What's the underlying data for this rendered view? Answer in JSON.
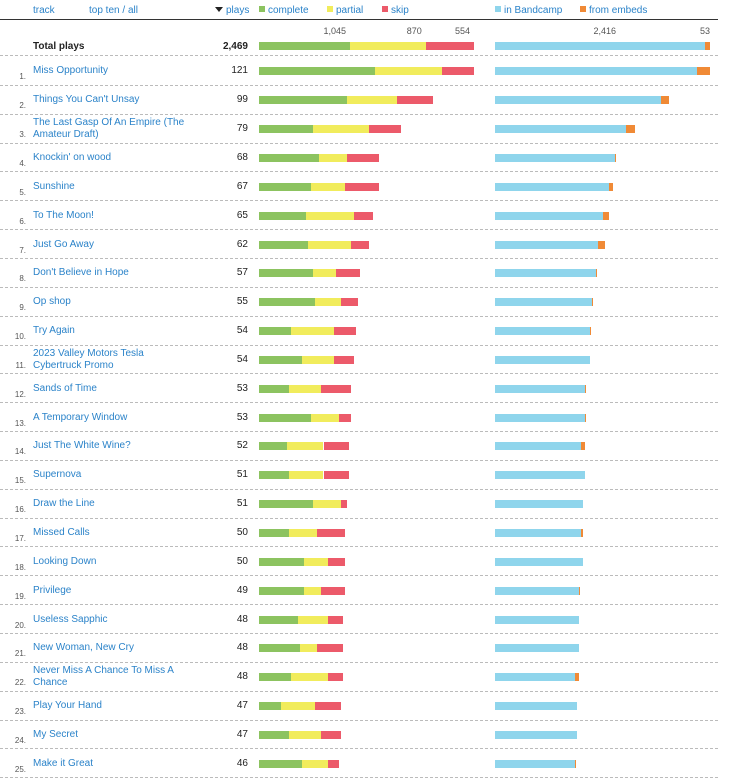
{
  "header": {
    "track_label": "track",
    "filter_top_ten": "top ten",
    "filter_sep": " / ",
    "filter_all": "all",
    "plays_label": "plays",
    "legend_complete": "complete",
    "legend_partial": "partial",
    "legend_skip": "skip",
    "legend_bandcamp": "in Bandcamp",
    "legend_embeds": "from embeds"
  },
  "colors": {
    "complete": "#8cc360",
    "partial": "#f1ec5c",
    "skip": "#ec5a6a",
    "bandcamp": "#8fd5ec",
    "embeds": "#f08a36",
    "link": "#2b83c9"
  },
  "totals": {
    "label": "Total plays",
    "plays": "2,469",
    "complete": 1045,
    "partial": 870,
    "skip": 554,
    "complete_text": "1,045",
    "partial_text": "870",
    "skip_text": "554",
    "bandcamp": 2416,
    "embeds": 53,
    "bandcamp_text": "2,416",
    "embeds_text": "53"
  },
  "tracks": [
    {
      "rank": "1.",
      "title": "Miss Opportunity",
      "plays": "121",
      "complete": 54,
      "partial": 31,
      "skip": 15,
      "bandcamp": 94,
      "embeds": 6
    },
    {
      "rank": "2.",
      "title": "Things You Can't Unsay",
      "plays": "99",
      "complete": 41,
      "partial": 23,
      "skip": 17,
      "bandcamp": 77,
      "embeds": 4
    },
    {
      "rank": "3.",
      "title": "The Last Gasp Of An Empire (The Amateur Draft)",
      "plays": "79",
      "complete": 25,
      "partial": 26,
      "skip": 15,
      "bandcamp": 61,
      "embeds": 4
    },
    {
      "rank": "4.",
      "title": "Knockin' on wood",
      "plays": "68",
      "complete": 28,
      "partial": 13,
      "skip": 15,
      "bandcamp": 56,
      "embeds": 0.5
    },
    {
      "rank": "5.",
      "title": "Sunshine",
      "plays": "67",
      "complete": 24,
      "partial": 16,
      "skip": 16,
      "bandcamp": 53,
      "embeds": 2
    },
    {
      "rank": "6.",
      "title": "To The Moon!",
      "plays": "65",
      "complete": 22,
      "partial": 22,
      "skip": 9,
      "bandcamp": 50,
      "embeds": 3
    },
    {
      "rank": "7.",
      "title": "Just Go Away",
      "plays": "62",
      "complete": 23,
      "partial": 20,
      "skip": 8,
      "bandcamp": 48,
      "embeds": 3
    },
    {
      "rank": "8.",
      "title": "Don't Believe in Hope",
      "plays": "57",
      "complete": 25,
      "partial": 11,
      "skip": 11,
      "bandcamp": 47,
      "embeds": 0.5
    },
    {
      "rank": "9.",
      "title": "Op shop",
      "plays": "55",
      "complete": 26,
      "partial": 12,
      "skip": 8,
      "bandcamp": 45,
      "embeds": 0.5
    },
    {
      "rank": "10.",
      "title": "Try Again",
      "plays": "54",
      "complete": 15,
      "partial": 20,
      "skip": 10,
      "bandcamp": 44,
      "embeds": 0.5
    },
    {
      "rank": "11.",
      "title": "2023 Valley Motors Tesla Cybertruck Promo",
      "plays": "54",
      "complete": 20,
      "partial": 15,
      "skip": 9,
      "bandcamp": 44,
      "embeds": 0
    },
    {
      "rank": "12.",
      "title": "Sands of Time",
      "plays": "53",
      "complete": 14,
      "partial": 15,
      "skip": 14,
      "bandcamp": 42,
      "embeds": 0.5
    },
    {
      "rank": "13.",
      "title": "A Temporary Window",
      "plays": "53",
      "complete": 24,
      "partial": 13,
      "skip": 6,
      "bandcamp": 42,
      "embeds": 0.5
    },
    {
      "rank": "14.",
      "title": "Just The White Wine?",
      "plays": "52",
      "complete": 13,
      "partial": 17,
      "skip": 12,
      "bandcamp": 40,
      "embeds": 2
    },
    {
      "rank": "15.",
      "title": "Supernova",
      "plays": "51",
      "complete": 14,
      "partial": 16,
      "skip": 12,
      "bandcamp": 42,
      "embeds": 0
    },
    {
      "rank": "16.",
      "title": "Draw the Line",
      "plays": "51",
      "complete": 25,
      "partial": 13,
      "skip": 3,
      "bandcamp": 41,
      "embeds": 0
    },
    {
      "rank": "17.",
      "title": "Missed Calls",
      "plays": "50",
      "complete": 14,
      "partial": 13,
      "skip": 13,
      "bandcamp": 40,
      "embeds": 1
    },
    {
      "rank": "18.",
      "title": "Looking Down",
      "plays": "50",
      "complete": 21,
      "partial": 11,
      "skip": 8,
      "bandcamp": 41,
      "embeds": 0
    },
    {
      "rank": "19.",
      "title": "Privilege",
      "plays": "49",
      "complete": 21,
      "partial": 8,
      "skip": 11,
      "bandcamp": 39,
      "embeds": 0.5
    },
    {
      "rank": "20.",
      "title": "Useless Sapphic",
      "plays": "48",
      "complete": 18,
      "partial": 14,
      "skip": 7,
      "bandcamp": 39,
      "embeds": 0
    },
    {
      "rank": "21.",
      "title": "New Woman, New Cry",
      "plays": "48",
      "complete": 19,
      "partial": 8,
      "skip": 12,
      "bandcamp": 39,
      "embeds": 0
    },
    {
      "rank": "22.",
      "title": "Never Miss A Chance To Miss A Chance",
      "plays": "48",
      "complete": 15,
      "partial": 17,
      "skip": 7,
      "bandcamp": 37,
      "embeds": 2
    },
    {
      "rank": "23.",
      "title": "Play Your Hand",
      "plays": "47",
      "complete": 10,
      "partial": 16,
      "skip": 12,
      "bandcamp": 38,
      "embeds": 0
    },
    {
      "rank": "24.",
      "title": "My Secret",
      "plays": "47",
      "complete": 14,
      "partial": 15,
      "skip": 9,
      "bandcamp": 38,
      "embeds": 0
    },
    {
      "rank": "25.",
      "title": "Make it Great",
      "plays": "46",
      "complete": 20,
      "partial": 12,
      "skip": 5,
      "bandcamp": 37,
      "embeds": 0.5
    }
  ]
}
